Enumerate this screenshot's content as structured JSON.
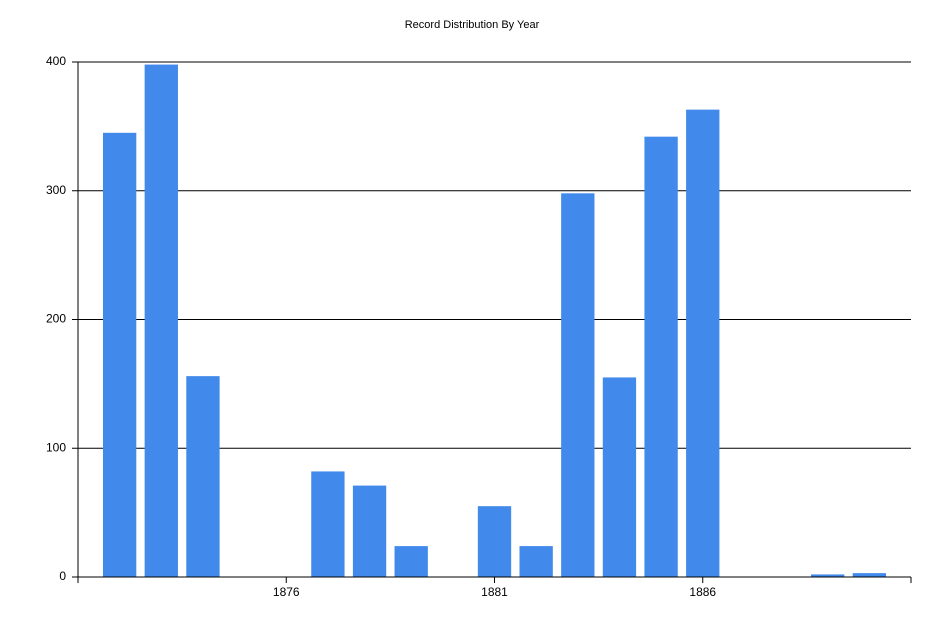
{
  "chart_data": {
    "type": "bar",
    "title": "Record Distribution By Year",
    "x": [
      1872,
      1873,
      1874,
      1877,
      1878,
      1879,
      1881,
      1882,
      1883,
      1884,
      1885,
      1886,
      1889,
      1890
    ],
    "values": [
      345,
      398,
      156,
      82,
      71,
      24,
      55,
      24,
      298,
      155,
      342,
      363,
      2,
      3
    ],
    "color": "#4189ea",
    "xlim": [
      1871,
      1891
    ],
    "xticks": [
      1876,
      1881,
      1886
    ],
    "ylim": [
      0,
      400
    ],
    "yticks": [
      0,
      100,
      200,
      300,
      400
    ],
    "grid": true
  }
}
